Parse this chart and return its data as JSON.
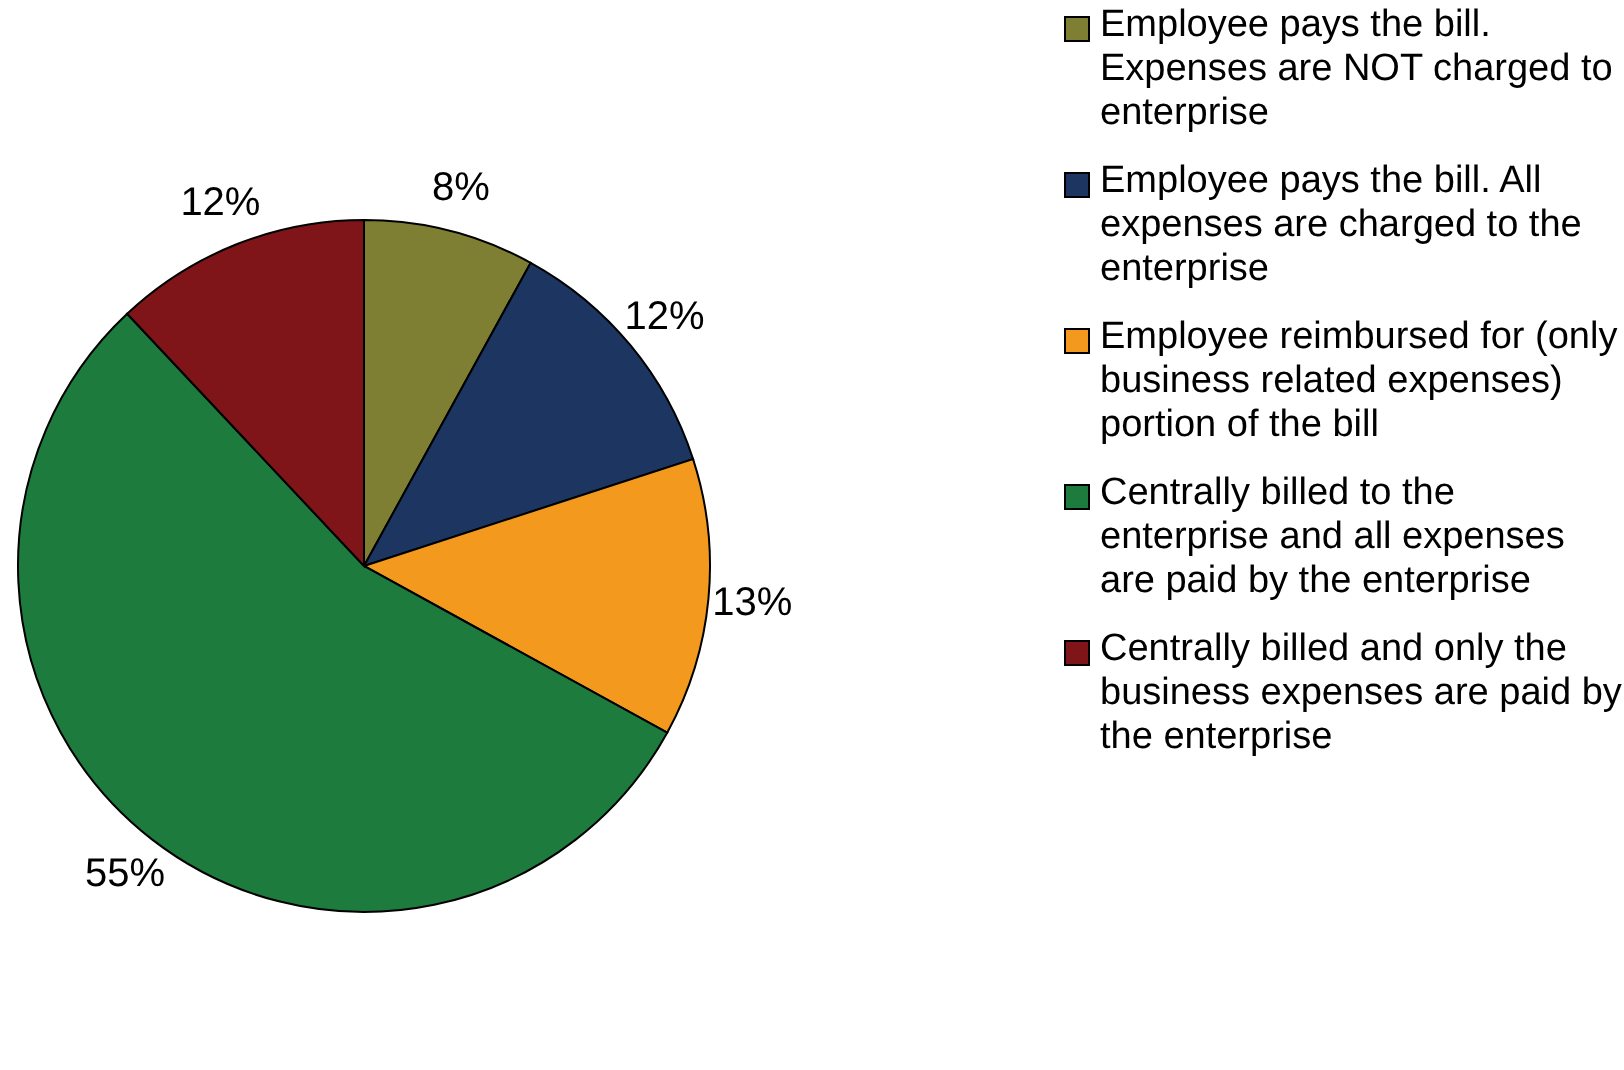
{
  "chart_data": {
    "type": "pie",
    "categories": [
      "Employee pays the bill. Expenses are NOT charged to enterprise",
      "Employee pays the bill. All expenses are charged to the enterprise",
      "Employee reimbursed for (only business related expenses) portion of the bill",
      "Centrally billed to the enterprise and all expenses are paid by the enterprise",
      "Centrally billed and only the business expenses are paid by the enterprise"
    ],
    "values": [
      8,
      12,
      13,
      55,
      12
    ],
    "value_labels": [
      "8%",
      "12%",
      "13%",
      "55%",
      "12%"
    ],
    "colors": [
      "#7f7f33",
      "#1c3561",
      "#f39a1e",
      "#1d7b3e",
      "#7f1518"
    ],
    "legend": "top right"
  }
}
